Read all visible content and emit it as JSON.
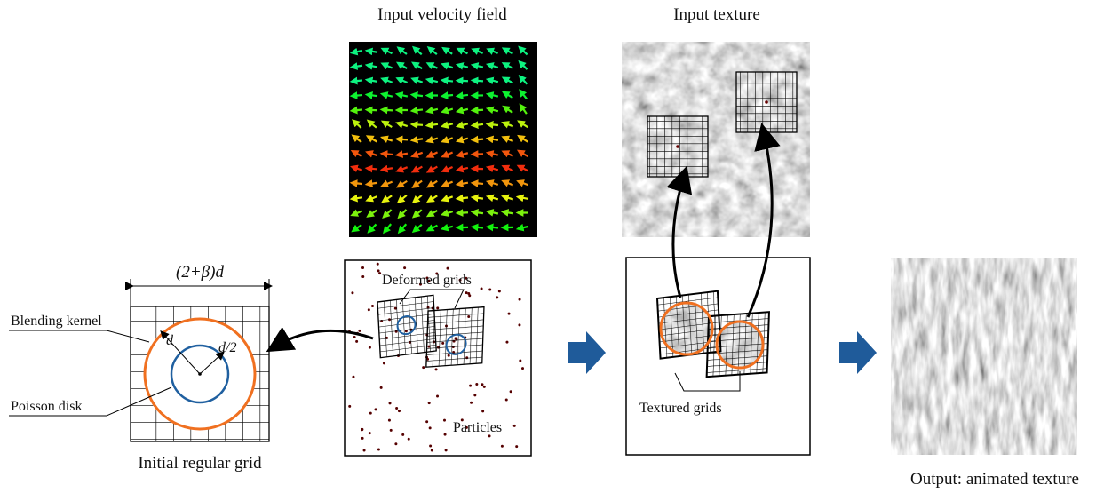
{
  "labels": {
    "velocity_title": "Input velocity field",
    "texture_title": "Input texture",
    "width_label": "(2+β)d",
    "blending_kernel": "Blending kernel",
    "poisson_disk": "Poisson disk",
    "radius_d": "d",
    "radius_half": "d/2",
    "initial_grid": "Initial regular grid",
    "deformed_grids": "Deformed grids",
    "particles": "Particles",
    "textured_grids": "Textured grids",
    "output": "Output: animated texture"
  }
}
